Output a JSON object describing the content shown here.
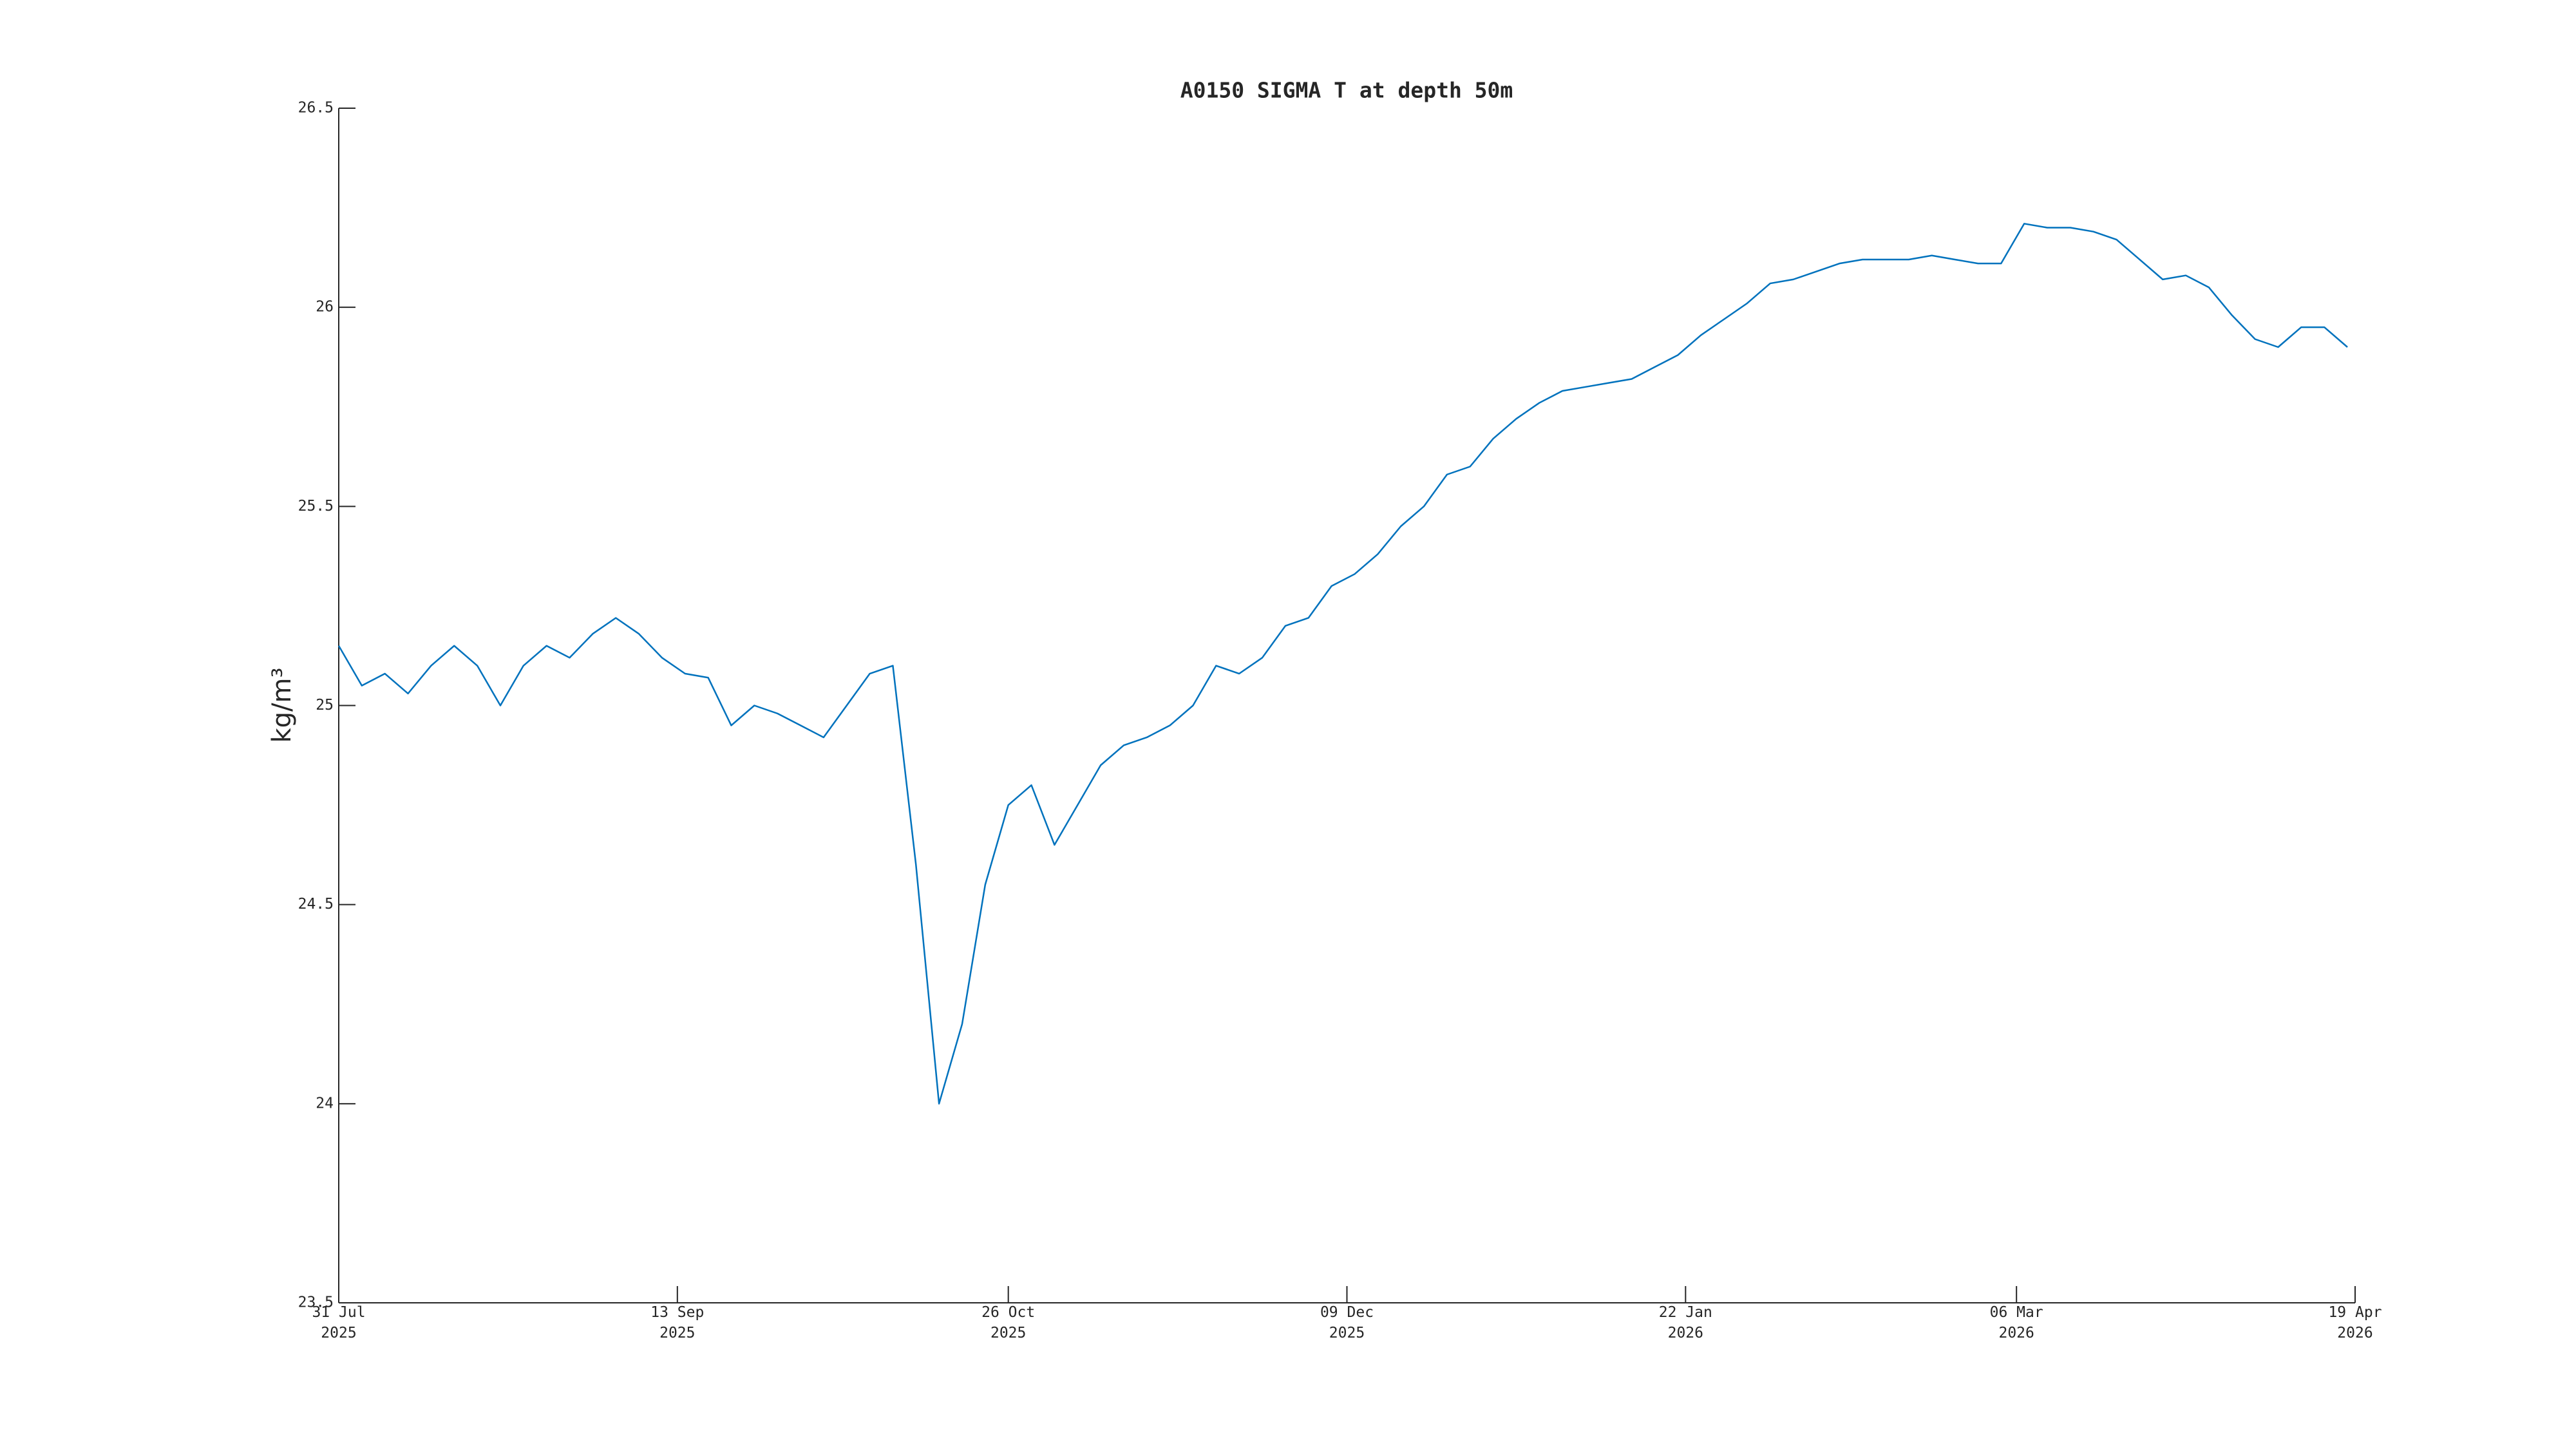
{
  "chart_data": {
    "type": "line",
    "title": "A0150 SIGMA T at depth 50m",
    "ylabel": "kg/m³",
    "xlim": [
      "2025-07-31",
      "2026-04-19"
    ],
    "xticks": [
      {
        "value": "2025-07-31",
        "label": "31 Jul 2025"
      },
      {
        "value": "2025-09-13",
        "label": "13 Sep 2025"
      },
      {
        "value": "2025-10-26",
        "label": "26 Oct 2025"
      },
      {
        "value": "2025-12-09",
        "label": "09 Dec 2025"
      },
      {
        "value": "2026-01-22",
        "label": "22 Jan 2026"
      },
      {
        "value": "2026-03-06",
        "label": "06 Mar 2026"
      },
      {
        "value": "2026-04-19",
        "label": "19 Apr 2026"
      }
    ],
    "ylim": [
      23.5,
      26.5
    ],
    "yticks": [
      23.5,
      24,
      24.5,
      25,
      25.5,
      26,
      26.5
    ],
    "x": [
      "2025-07-31",
      "2025-08-03",
      "2025-08-06",
      "2025-08-09",
      "2025-08-12",
      "2025-08-15",
      "2025-08-18",
      "2025-08-21",
      "2025-08-24",
      "2025-08-27",
      "2025-08-30",
      "2025-09-02",
      "2025-09-05",
      "2025-09-08",
      "2025-09-11",
      "2025-09-14",
      "2025-09-17",
      "2025-09-20",
      "2025-09-23",
      "2025-09-26",
      "2025-09-29",
      "2025-10-02",
      "2025-10-05",
      "2025-10-08",
      "2025-10-11",
      "2025-10-14",
      "2025-10-17",
      "2025-10-20",
      "2025-10-23",
      "2025-10-26",
      "2025-10-29",
      "2025-11-01",
      "2025-11-04",
      "2025-11-07",
      "2025-11-10",
      "2025-11-13",
      "2025-11-16",
      "2025-11-19",
      "2025-11-22",
      "2025-11-25",
      "2025-11-28",
      "2025-12-01",
      "2025-12-04",
      "2025-12-07",
      "2025-12-10",
      "2025-12-13",
      "2025-12-16",
      "2025-12-19",
      "2025-12-22",
      "2025-12-25",
      "2025-12-28",
      "2025-12-31",
      "2026-01-03",
      "2026-01-06",
      "2026-01-09",
      "2026-01-12",
      "2026-01-15",
      "2026-01-18",
      "2026-01-21",
      "2026-01-24",
      "2026-01-27",
      "2026-01-30",
      "2026-02-02",
      "2026-02-05",
      "2026-02-08",
      "2026-02-11",
      "2026-02-14",
      "2026-02-17",
      "2026-02-20",
      "2026-02-23",
      "2026-02-26",
      "2026-03-01",
      "2026-03-04",
      "2026-03-07",
      "2026-03-10",
      "2026-03-13",
      "2026-03-16",
      "2026-03-19",
      "2026-03-22",
      "2026-03-25",
      "2026-03-28",
      "2026-03-31",
      "2026-04-03",
      "2026-04-06",
      "2026-04-09",
      "2026-04-12",
      "2026-04-15",
      "2026-04-18"
    ],
    "series": [
      {
        "name": "SIGMA T",
        "color": "#0072bd",
        "values": [
          25.15,
          25.05,
          25.08,
          25.03,
          25.1,
          25.15,
          25.1,
          25.0,
          25.1,
          25.15,
          25.12,
          25.18,
          25.22,
          25.18,
          25.12,
          25.08,
          25.07,
          24.95,
          25.0,
          24.98,
          24.95,
          24.92,
          25.0,
          25.08,
          25.1,
          24.6,
          24.0,
          24.2,
          24.55,
          24.75,
          24.8,
          24.65,
          24.75,
          24.85,
          24.9,
          24.92,
          24.95,
          25.0,
          25.1,
          25.08,
          25.12,
          25.2,
          25.22,
          25.3,
          25.33,
          25.38,
          25.45,
          25.5,
          25.58,
          25.6,
          25.67,
          25.72,
          25.76,
          25.79,
          25.8,
          25.81,
          25.82,
          25.85,
          25.88,
          25.93,
          25.97,
          26.01,
          26.06,
          26.07,
          26.09,
          26.11,
          26.12,
          26.12,
          26.12,
          26.13,
          26.12,
          26.11,
          26.11,
          26.21,
          26.2,
          26.2,
          26.19,
          26.17,
          26.12,
          26.07,
          26.08,
          26.05,
          25.98,
          25.92,
          25.9,
          25.95,
          25.95,
          25.9
        ]
      }
    ]
  }
}
